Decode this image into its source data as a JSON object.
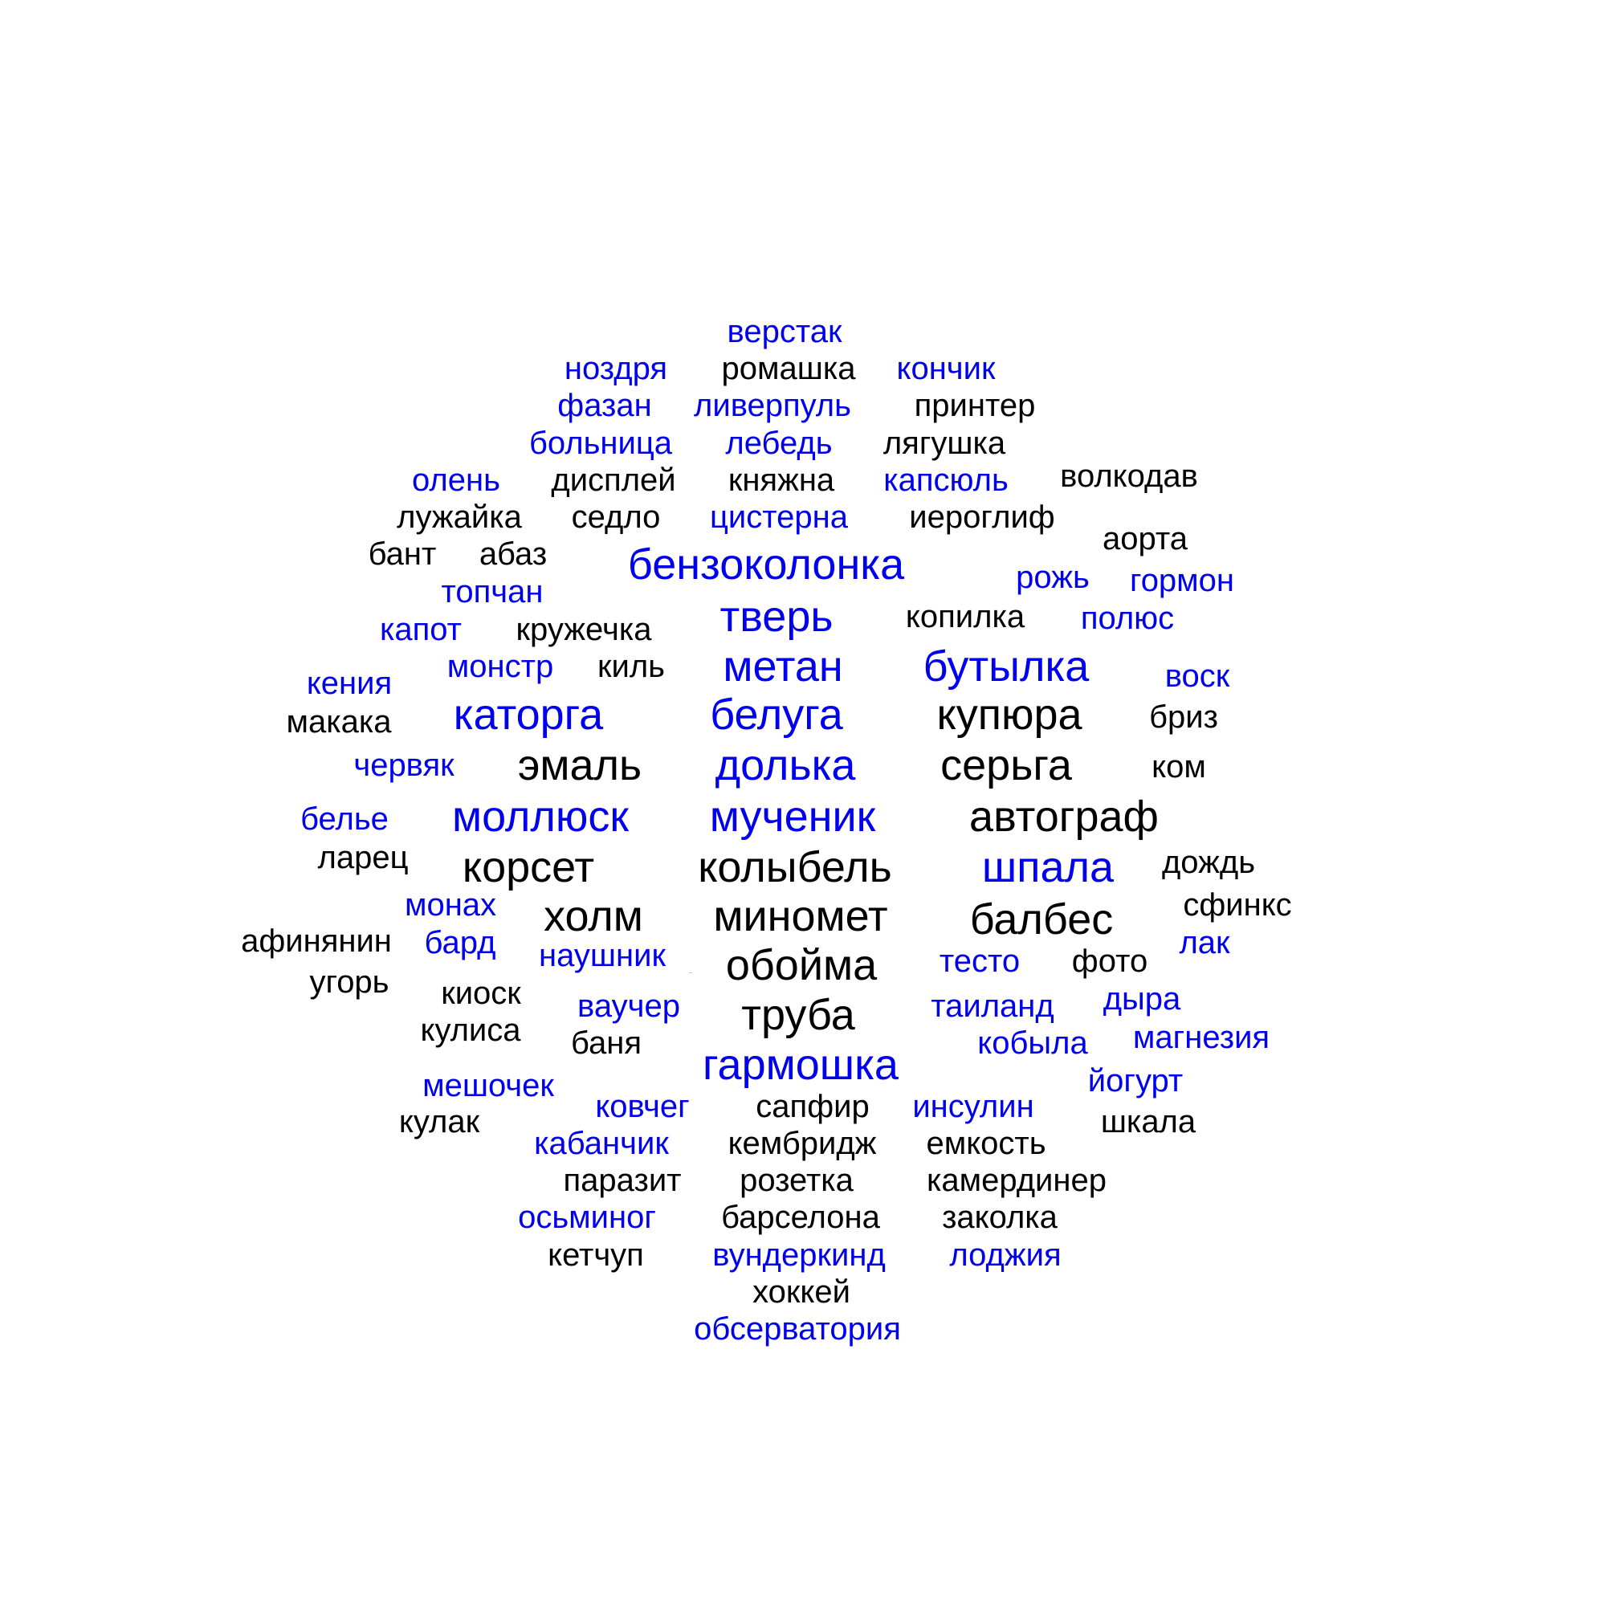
{
  "colors": {
    "blue": "#0000ee",
    "black": "#000000"
  },
  "words": [
    {
      "text": "верстак",
      "color": "blue"
    },
    {
      "text": "ноздря",
      "color": "blue"
    },
    {
      "text": "ромашка",
      "color": "black"
    },
    {
      "text": "кончик",
      "color": "blue"
    },
    {
      "text": "фазан",
      "color": "blue"
    },
    {
      "text": "ливерпуль",
      "color": "blue"
    },
    {
      "text": "принтер",
      "color": "black"
    },
    {
      "text": "больница",
      "color": "blue"
    },
    {
      "text": "лебедь",
      "color": "blue"
    },
    {
      "text": "лягушка",
      "color": "black"
    },
    {
      "text": "олень",
      "color": "blue"
    },
    {
      "text": "дисплей",
      "color": "black"
    },
    {
      "text": "княжна",
      "color": "black"
    },
    {
      "text": "капсюль",
      "color": "blue"
    },
    {
      "text": "волкодав",
      "color": "black"
    },
    {
      "text": "лужайка",
      "color": "black"
    },
    {
      "text": "седло",
      "color": "black"
    },
    {
      "text": "цистерна",
      "color": "blue"
    },
    {
      "text": "иероглиф",
      "color": "black"
    },
    {
      "text": "бант",
      "color": "black"
    },
    {
      "text": "абаз",
      "color": "black"
    },
    {
      "text": "бензоколонка",
      "color": "blue"
    },
    {
      "text": "аорта",
      "color": "black"
    },
    {
      "text": "рожь",
      "color": "blue"
    },
    {
      "text": "гормон",
      "color": "blue"
    },
    {
      "text": "топчан",
      "color": "blue"
    },
    {
      "text": "тверь",
      "color": "blue"
    },
    {
      "text": "копилка",
      "color": "black"
    },
    {
      "text": "полюс",
      "color": "blue"
    },
    {
      "text": "капот",
      "color": "blue"
    },
    {
      "text": "кружечка",
      "color": "black"
    },
    {
      "text": "монстр",
      "color": "blue"
    },
    {
      "text": "киль",
      "color": "black"
    },
    {
      "text": "метан",
      "color": "blue"
    },
    {
      "text": "бутылка",
      "color": "blue"
    },
    {
      "text": "кения",
      "color": "blue"
    },
    {
      "text": "воск",
      "color": "blue"
    },
    {
      "text": "макака",
      "color": "black"
    },
    {
      "text": "каторга",
      "color": "blue"
    },
    {
      "text": "белуга",
      "color": "blue"
    },
    {
      "text": "купюра",
      "color": "black"
    },
    {
      "text": "бриз",
      "color": "black"
    },
    {
      "text": "червяк",
      "color": "blue"
    },
    {
      "text": "эмаль",
      "color": "black"
    },
    {
      "text": "долька",
      "color": "blue"
    },
    {
      "text": "серьга",
      "color": "black"
    },
    {
      "text": "ком",
      "color": "black"
    },
    {
      "text": "белье",
      "color": "blue"
    },
    {
      "text": "моллюск",
      "color": "blue"
    },
    {
      "text": "мученик",
      "color": "blue"
    },
    {
      "text": "автограф",
      "color": "black"
    },
    {
      "text": "ларец",
      "color": "black"
    },
    {
      "text": "корсет",
      "color": "black"
    },
    {
      "text": "колыбель",
      "color": "black"
    },
    {
      "text": "шпала",
      "color": "blue"
    },
    {
      "text": "дождь",
      "color": "black"
    },
    {
      "text": "монах",
      "color": "blue"
    },
    {
      "text": "холм",
      "color": "black"
    },
    {
      "text": "миномет",
      "color": "black"
    },
    {
      "text": "балбес",
      "color": "black"
    },
    {
      "text": "сфинкс",
      "color": "black"
    },
    {
      "text": "афинянин",
      "color": "black"
    },
    {
      "text": "бард",
      "color": "blue"
    },
    {
      "text": "наушник",
      "color": "blue"
    },
    {
      "text": "обойма",
      "color": "black"
    },
    {
      "text": "тесто",
      "color": "blue"
    },
    {
      "text": "фото",
      "color": "black"
    },
    {
      "text": "лак",
      "color": "blue"
    },
    {
      "text": "угорь",
      "color": "black"
    },
    {
      "text": "киоск",
      "color": "black"
    },
    {
      "text": "ваучер",
      "color": "blue"
    },
    {
      "text": "труба",
      "color": "black"
    },
    {
      "text": "таиланд",
      "color": "blue"
    },
    {
      "text": "дыра",
      "color": "blue"
    },
    {
      "text": "кулиса",
      "color": "black"
    },
    {
      "text": "баня",
      "color": "black"
    },
    {
      "text": "кобыла",
      "color": "blue"
    },
    {
      "text": "магнезия",
      "color": "blue"
    },
    {
      "text": "гармошка",
      "color": "blue"
    },
    {
      "text": "мешочек",
      "color": "blue"
    },
    {
      "text": "йогурт",
      "color": "blue"
    },
    {
      "text": "ковчег",
      "color": "blue"
    },
    {
      "text": "сапфир",
      "color": "black"
    },
    {
      "text": "инсулин",
      "color": "blue"
    },
    {
      "text": "кулак",
      "color": "black"
    },
    {
      "text": "шкала",
      "color": "black"
    },
    {
      "text": "кабанчик",
      "color": "blue"
    },
    {
      "text": "кембридж",
      "color": "black"
    },
    {
      "text": "емкость",
      "color": "black"
    },
    {
      "text": "паразит",
      "color": "black"
    },
    {
      "text": "розетка",
      "color": "black"
    },
    {
      "text": "камердинер",
      "color": "black"
    },
    {
      "text": "осьминог",
      "color": "blue"
    },
    {
      "text": "барселона",
      "color": "black"
    },
    {
      "text": "заколка",
      "color": "black"
    },
    {
      "text": "кетчуп",
      "color": "black"
    },
    {
      "text": "вундеркинд",
      "color": "blue"
    },
    {
      "text": "лоджия",
      "color": "blue"
    },
    {
      "text": "хоккей",
      "color": "black"
    },
    {
      "text": "обсерватория",
      "color": "blue"
    },
    {
      "text": "—",
      "color": "blue"
    }
  ]
}
